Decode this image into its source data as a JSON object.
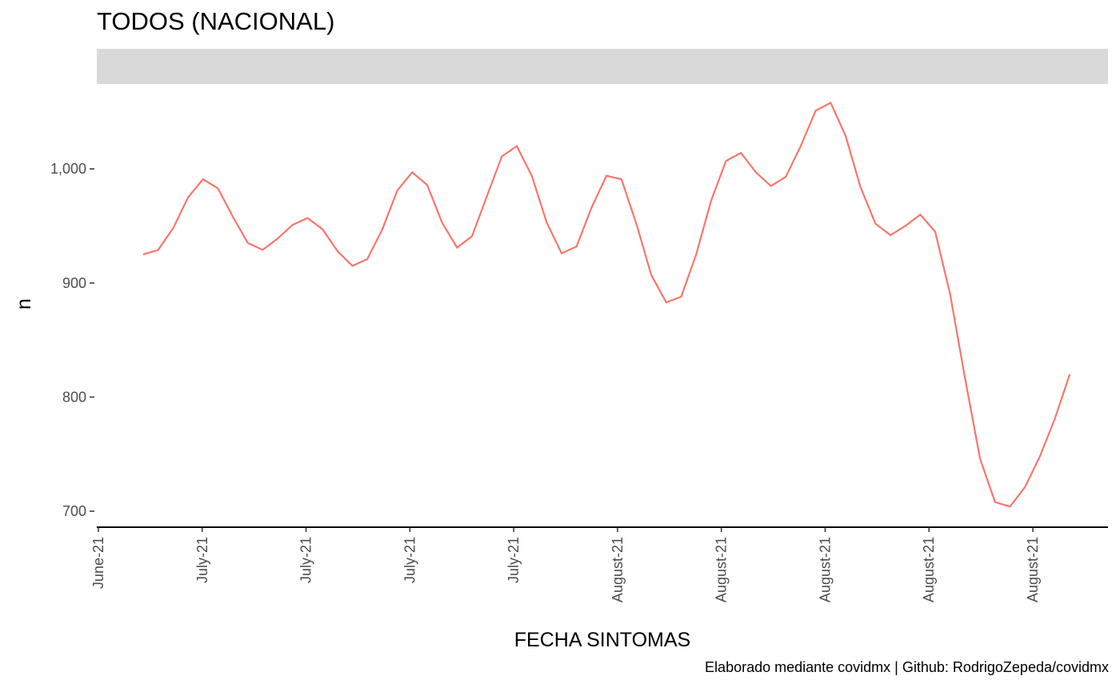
{
  "chart_data": {
    "type": "line",
    "title": "TODOS (NACIONAL)",
    "caption": "Elaborado mediante covidmx | Github: RodrigoZepeda/covidmx",
    "xlabel": "FECHA SINTOMAS",
    "ylabel": "n",
    "x_ticks": [
      "June-21",
      "July-21",
      "July-21",
      "July-21",
      "July-21",
      "August-21",
      "August-21",
      "August-21",
      "August-21",
      "August-21"
    ],
    "y_ticks": [
      700,
      800,
      900,
      1000
    ],
    "y_tick_labels": [
      "700",
      "800",
      "900",
      "1,000"
    ],
    "ylim": [
      686,
      1073
    ],
    "grid": false,
    "series": [
      {
        "color": "#f8766d",
        "values": [
          925,
          929,
          948,
          975,
          991,
          983,
          958,
          935,
          929,
          939,
          951,
          957,
          947,
          928,
          915,
          921,
          947,
          981,
          997,
          986,
          953,
          931,
          941,
          976,
          1011,
          1020,
          994,
          953,
          926,
          932,
          966,
          994,
          991,
          952,
          907,
          883,
          888,
          925,
          972,
          1007,
          1014,
          997,
          985,
          993,
          1020,
          1051,
          1058,
          1029,
          984,
          952,
          942,
          950,
          960,
          945,
          890,
          816,
          746,
          708,
          704,
          721,
          748,
          781,
          820
        ]
      }
    ]
  }
}
